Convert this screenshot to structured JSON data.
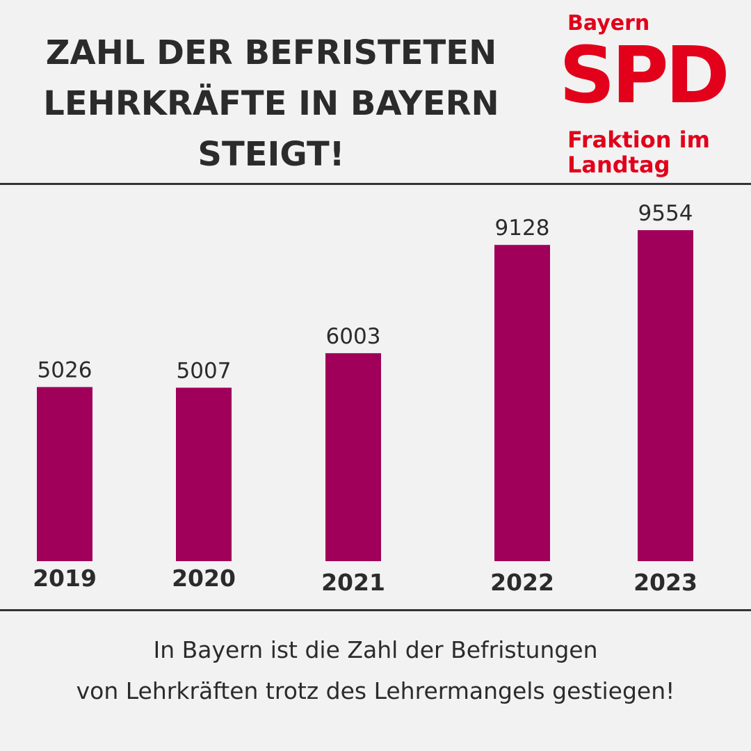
{
  "title": {
    "line1": "ZAHL DER BEFRISTETEN",
    "line2": "LEHRKRÄFTE IN BAYERN",
    "line3": "STEIGT!"
  },
  "logo": {
    "region": "Bayern",
    "party": "SPD",
    "line1": "Fraktion im",
    "line2": "Landtag"
  },
  "caption": {
    "line1": "In Bayern ist die Zahl der Befristungen",
    "line2": "von Lehrkräften trotz des Lehrermangels gestiegen!"
  },
  "colors": {
    "bar": "#a0005a",
    "brand": "#e2001a",
    "text": "#2b2b2b"
  },
  "chart_data": {
    "type": "bar",
    "title": "ZAHL DER BEFRISTETEN LEHRKRÄFTE IN BAYERN STEIGT!",
    "categories": [
      "2019",
      "2020",
      "2021",
      "2022",
      "2023"
    ],
    "values": [
      5026,
      5007,
      6003,
      9128,
      9554
    ],
    "value_labels": [
      "5026",
      "5007",
      "6003",
      "9128",
      "9554"
    ],
    "xlabel": "",
    "ylabel": "",
    "ylim": [
      0,
      10500
    ],
    "grid": false,
    "legend": "none"
  }
}
